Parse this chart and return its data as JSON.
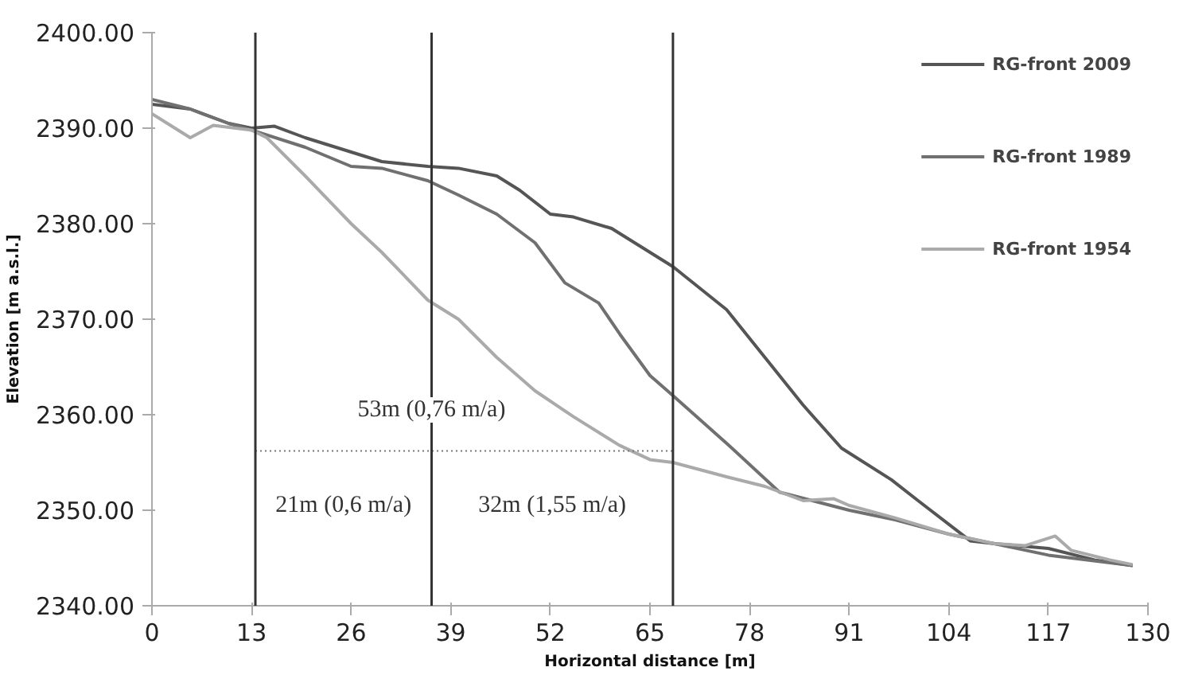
{
  "chart_data": {
    "type": "line",
    "xlabel": "Horizontal distance [m]",
    "ylabel": "Elevation [m a.s.l.]",
    "xlim": [
      0,
      130
    ],
    "ylim": [
      2340,
      2400
    ],
    "xticks": [
      0,
      13,
      26,
      39,
      52,
      65,
      78,
      91,
      104,
      117,
      130
    ],
    "yticks": [
      {
        "value": 2340,
        "label": "2340.00"
      },
      {
        "value": 2350,
        "label": "2350.00"
      },
      {
        "value": 2360,
        "label": "2360.00"
      },
      {
        "value": 2370,
        "label": "2370.00"
      },
      {
        "value": 2380,
        "label": "2380.00"
      },
      {
        "value": 2390,
        "label": "2390.00"
      },
      {
        "value": 2400,
        "label": "2400.00"
      }
    ],
    "grid": false,
    "legend": "top right",
    "marker": "none",
    "line_style": "solid",
    "series": [
      {
        "name": "RG-front 2009",
        "color": "#555555",
        "x": [
          0,
          5,
          10,
          13,
          16,
          20,
          26,
          30,
          36,
          40,
          45,
          48,
          52,
          55,
          60,
          65,
          68,
          75,
          80,
          85,
          90,
          96.5,
          100,
          106.8,
          110,
          117,
          123,
          128
        ],
        "values": [
          2392.5,
          2392,
          2390.5,
          2390,
          2390.2,
          2389,
          2387.5,
          2386.5,
          2386,
          2385.8,
          2385,
          2383.5,
          2381,
          2380.7,
          2379.5,
          2377,
          2375.5,
          2371,
          2366,
          2361,
          2356.5,
          2353.2,
          2351,
          2346.8,
          2346.5,
          2346,
          2344.8,
          2344.2
        ]
      },
      {
        "name": "RG-front 1989",
        "color": "#707070",
        "x": [
          0,
          5,
          10,
          13,
          20,
          26,
          30,
          36,
          40,
          45,
          50,
          53.9,
          58.3,
          61.1,
          65,
          68,
          75.3,
          81.9,
          91,
          97,
          104,
          117,
          128
        ],
        "values": [
          2393,
          2392,
          2390.5,
          2389.8,
          2388,
          2386,
          2385.8,
          2384.5,
          2383,
          2381,
          2378,
          2373.8,
          2371.7,
          2368.4,
          2364.1,
          2362,
          2356.8,
          2351.9,
          2350,
          2349,
          2347.5,
          2345.3,
          2344.2
        ]
      },
      {
        "name": "RG-front 1954",
        "color": "#aaaaaa",
        "x": [
          0,
          3,
          5,
          8,
          13,
          15,
          20,
          26,
          30,
          36,
          40,
          45,
          50,
          55,
          61,
          65,
          68,
          75,
          80,
          85,
          89,
          91,
          97,
          104,
          110,
          114,
          117.9,
          120,
          125,
          128
        ],
        "values": [
          2391.5,
          2390,
          2389,
          2390.3,
          2389.8,
          2389,
          2385,
          2380,
          2377,
          2372,
          2370,
          2366,
          2362.5,
          2359.8,
          2356.8,
          2355.3,
          2355,
          2353.5,
          2352.5,
          2351,
          2351.2,
          2350.5,
          2349.2,
          2347.5,
          2346.5,
          2346.3,
          2347.3,
          2345.8,
          2344.8,
          2344.3
        ]
      },
      {
        "type": "line",
        "line_style": "dotted",
        "color": "#777777",
        "x": [
          13.5,
          68
        ],
        "values": [
          2356.2,
          2356.2
        ]
      }
    ],
    "ref_lines": [
      {
        "axis": "x",
        "value": 13.5,
        "color": "#333333"
      },
      {
        "axis": "x",
        "value": 36.5,
        "color": "#333333"
      },
      {
        "axis": "x",
        "value": 68,
        "color": "#333333"
      }
    ],
    "annotations": [
      {
        "text": "53m (0,76 m/a)",
        "x": 36.5,
        "y": 2360.5
      },
      "21m (0,6 m/a)",
      "32m (1,55 m/a)"
    ]
  }
}
